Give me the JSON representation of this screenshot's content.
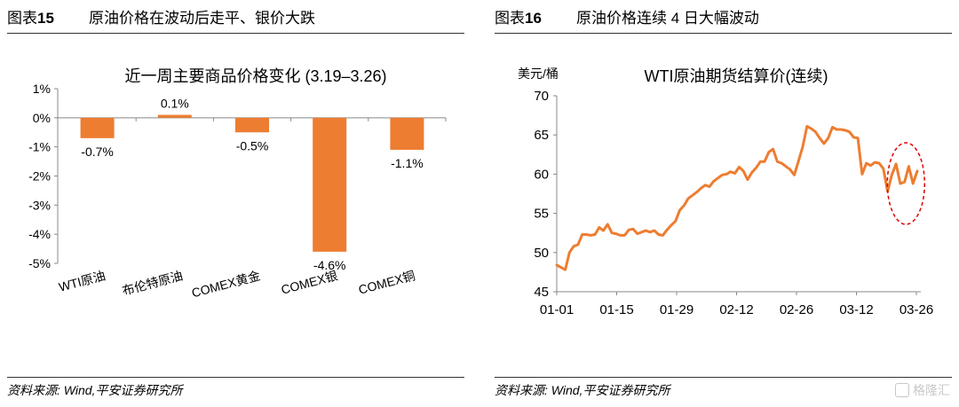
{
  "fig15": {
    "label_prefix": "图表",
    "label_num": "15",
    "title": "原油价格在波动后走平、银价大跌",
    "source": "资料来源: Wind,平安证券研究所"
  },
  "fig16": {
    "label_prefix": "图表",
    "label_num": "16",
    "title": "原油价格连续 4 日大幅波动",
    "source": "资料来源: Wind,平安证券研究所"
  },
  "watermark": "格隆汇",
  "chart_data": [
    {
      "type": "bar",
      "title": "近一周主要商品价格变化 (3.19–3.26)",
      "categories": [
        "WTI原油",
        "布伦特原油",
        "COMEX黄金",
        "COMEX银",
        "COMEX铜"
      ],
      "values": [
        -0.7,
        0.1,
        -0.5,
        -4.6,
        -1.1
      ],
      "data_labels": [
        "-0.7%",
        "0.1%",
        "-0.5%",
        "-4.6%",
        "-1.1%"
      ],
      "y_ticks": [
        1,
        0,
        -1,
        -2,
        -3,
        -4,
        -5
      ],
      "y_tick_labels": [
        "1%",
        "0%",
        "-1%",
        "-2%",
        "-3%",
        "-4%",
        "-5%"
      ],
      "ylim": [
        -5,
        1
      ],
      "grid": false,
      "color": "#ED7D31"
    },
    {
      "type": "line",
      "title": "WTI原油期货结算价(连续)",
      "ylabel": "美元/桶",
      "ylim": [
        45,
        70
      ],
      "y_ticks": [
        45,
        50,
        55,
        60,
        65,
        70
      ],
      "x_tick_labels": [
        "01-01",
        "01-15",
        "01-29",
        "02-12",
        "02-26",
        "03-12",
        "03-26"
      ],
      "x": [
        0,
        1,
        2,
        3,
        4,
        5,
        6,
        7,
        8,
        9,
        10,
        11,
        12,
        13,
        14,
        15,
        16,
        17,
        18,
        19,
        20,
        21,
        22,
        23,
        24,
        25,
        26,
        27,
        28,
        29,
        30,
        31,
        32,
        33,
        34,
        35,
        36,
        37,
        38,
        39,
        40,
        41,
        42,
        43,
        44,
        45,
        46,
        47,
        48,
        49,
        50,
        51,
        52,
        53,
        54,
        55,
        56,
        57,
        58,
        59,
        60,
        61,
        62,
        63,
        64,
        65,
        66,
        67,
        68,
        69,
        70,
        71,
        72,
        73,
        74,
        75,
        76,
        77,
        78,
        79,
        80,
        81,
        82,
        83,
        84,
        85
      ],
      "series": [
        {
          "values": [
            48.4,
            48.1,
            47.8,
            50.0,
            50.8,
            51.0,
            52.3,
            52.3,
            52.2,
            52.3,
            53.2,
            52.8,
            53.6,
            52.5,
            52.4,
            52.2,
            52.2,
            52.9,
            53.0,
            52.4,
            52.6,
            52.8,
            52.6,
            52.8,
            52.3,
            52.2,
            52.9,
            53.5,
            54.0,
            55.4,
            56.0,
            56.9,
            57.3,
            57.7,
            58.2,
            58.6,
            58.4,
            59.1,
            59.5,
            59.9,
            60.0,
            60.3,
            60.1,
            60.9,
            60.4,
            59.3,
            60.2,
            60.8,
            61.6,
            61.6,
            62.8,
            63.2,
            61.6,
            61.4,
            61.0,
            60.6,
            59.9,
            61.7,
            63.5,
            66.1,
            65.8,
            65.4,
            64.6,
            63.9,
            64.6,
            66.0,
            65.7,
            65.7,
            65.6,
            65.4,
            64.7,
            64.6,
            60.0,
            61.4,
            61.1,
            61.5,
            61.4,
            60.7,
            57.8,
            59.9,
            61.3,
            58.8,
            59.0,
            61.0,
            58.8,
            60.4
          ]
        }
      ],
      "annotation": "dashed red ellipse highlighting last four trading days",
      "color": "#ED7D31"
    }
  ]
}
